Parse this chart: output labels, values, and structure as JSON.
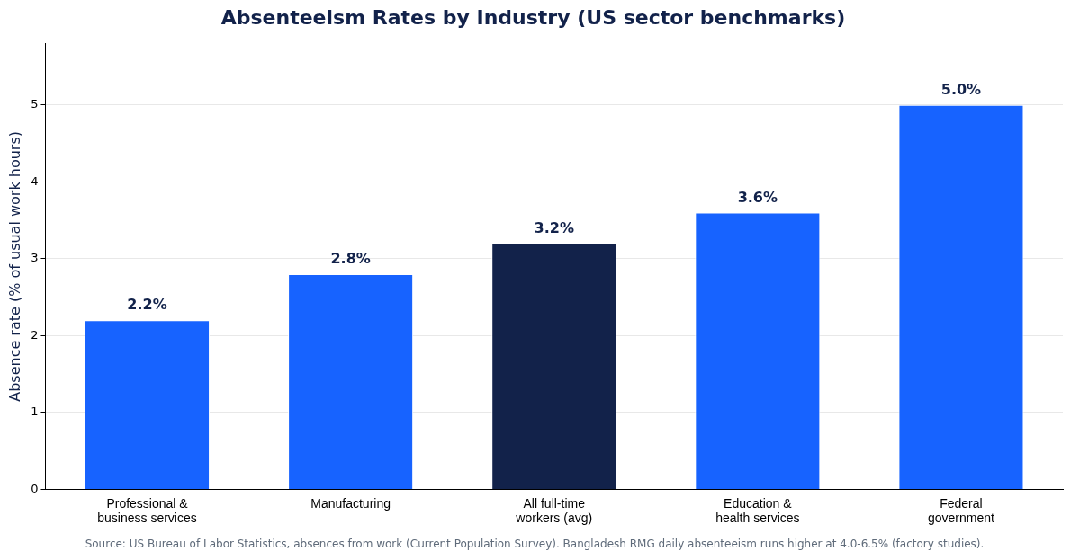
{
  "chart_data": {
    "type": "bar",
    "title": "Absenteeism Rates by Industry (US sector benchmarks)",
    "ylabel": "Absence rate (% of usual work hours)",
    "categories": [
      "Professional &\nbusiness services",
      "Manufacturing",
      "All full-time\nworkers (avg)",
      "Education &\nhealth services",
      "Federal\ngovernment"
    ],
    "values": [
      2.2,
      2.8,
      3.2,
      3.6,
      5.0
    ],
    "value_labels": [
      "2.2%",
      "2.8%",
      "3.2%",
      "3.6%",
      "5.0%"
    ],
    "colors": [
      "#1763ff",
      "#1763ff",
      "#12224a",
      "#1763ff",
      "#1763ff"
    ],
    "ylim": [
      0,
      5.8
    ],
    "yticks": [
      0,
      1,
      2,
      3,
      4,
      5
    ],
    "grid": "y",
    "legend": false,
    "annotations": [
      "Source: US Bureau of Labor Statistics, absences from work (Current Population Survey). Bangladesh RMG daily absenteeism runs higher at 4.0-6.5% (factory studies)."
    ]
  }
}
